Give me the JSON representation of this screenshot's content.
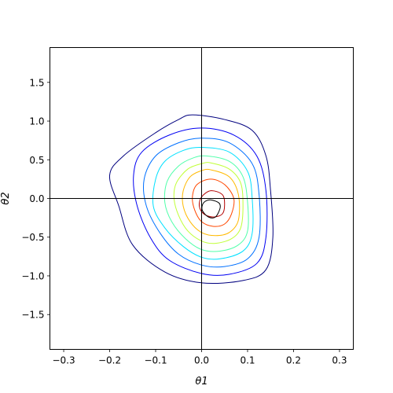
{
  "chart_data": {
    "type": "contour",
    "title": "",
    "xlabel": "θ1",
    "ylabel": "θ2",
    "xlim": [
      -0.33,
      0.33
    ],
    "ylim": [
      -1.95,
      1.95
    ],
    "x_ticks": [
      -0.3,
      -0.2,
      -0.1,
      0.0,
      0.1,
      0.2,
      0.3
    ],
    "x_tick_labels": [
      "−0.3",
      "−0.2",
      "−0.1",
      "0.0",
      "0.1",
      "0.2",
      "0.3"
    ],
    "y_ticks": [
      -1.5,
      -1.0,
      -0.5,
      0.0,
      0.5,
      1.0,
      1.5
    ],
    "y_tick_labels": [
      "−1.5",
      "−1.0",
      "−0.5",
      "0.0",
      "0.5",
      "1.0",
      "1.5"
    ],
    "reference_lines": {
      "x": 0.0,
      "y": 0.0,
      "color": "#000000"
    },
    "grid": false,
    "legend": "none",
    "colormap": "jet",
    "levels": [
      {
        "level": 1,
        "color": "#00007f",
        "points": [
          [
            -0.02,
            1.08
          ],
          [
            0.05,
            1.02
          ],
          [
            0.11,
            0.88
          ],
          [
            0.14,
            0.55
          ],
          [
            0.15,
            0.1
          ],
          [
            0.155,
            -0.5
          ],
          [
            0.14,
            -0.92
          ],
          [
            0.09,
            -1.06
          ],
          [
            0.0,
            -1.09
          ],
          [
            -0.08,
            -0.95
          ],
          [
            -0.15,
            -0.6
          ],
          [
            -0.18,
            -0.1
          ],
          [
            -0.2,
            0.3
          ],
          [
            -0.17,
            0.55
          ],
          [
            -0.1,
            0.85
          ],
          [
            -0.05,
            1.02
          ]
        ]
      },
      {
        "level": 2,
        "color": "#0000f2",
        "points": [
          [
            0.0,
            0.91
          ],
          [
            0.07,
            0.82
          ],
          [
            0.12,
            0.55
          ],
          [
            0.14,
            0.1
          ],
          [
            0.14,
            -0.5
          ],
          [
            0.12,
            -0.84
          ],
          [
            0.06,
            -0.98
          ],
          [
            0.0,
            -0.97
          ],
          [
            -0.07,
            -0.8
          ],
          [
            -0.11,
            -0.52
          ],
          [
            -0.14,
            -0.1
          ],
          [
            -0.148,
            0.3
          ],
          [
            -0.13,
            0.6
          ],
          [
            -0.07,
            0.82
          ]
        ]
      },
      {
        "level": 3,
        "color": "#0070ff",
        "points": [
          [
            0.0,
            0.78
          ],
          [
            0.06,
            0.72
          ],
          [
            0.11,
            0.45
          ],
          [
            0.125,
            0.05
          ],
          [
            0.125,
            -0.5
          ],
          [
            0.1,
            -0.78
          ],
          [
            0.05,
            -0.88
          ],
          [
            0.0,
            -0.86
          ],
          [
            -0.05,
            -0.72
          ],
          [
            -0.09,
            -0.45
          ],
          [
            -0.12,
            -0.1
          ],
          [
            -0.125,
            0.25
          ],
          [
            -0.1,
            0.55
          ],
          [
            -0.05,
            0.72
          ]
        ]
      },
      {
        "level": 4,
        "color": "#00e0ff",
        "points": [
          [
            0.0,
            0.66
          ],
          [
            0.06,
            0.6
          ],
          [
            0.1,
            0.35
          ],
          [
            0.11,
            0.0
          ],
          [
            0.11,
            -0.45
          ],
          [
            0.09,
            -0.68
          ],
          [
            0.04,
            -0.78
          ],
          [
            0.0,
            -0.76
          ],
          [
            -0.04,
            -0.62
          ],
          [
            -0.08,
            -0.38
          ],
          [
            -0.105,
            -0.1
          ],
          [
            -0.1,
            0.25
          ],
          [
            -0.08,
            0.48
          ],
          [
            -0.04,
            0.62
          ]
        ]
      },
      {
        "level": 5,
        "color": "#50ffaa",
        "points": [
          [
            0.01,
            0.55
          ],
          [
            0.06,
            0.48
          ],
          [
            0.09,
            0.28
          ],
          [
            0.1,
            -0.05
          ],
          [
            0.1,
            -0.42
          ],
          [
            0.08,
            -0.6
          ],
          [
            0.04,
            -0.68
          ],
          [
            0.0,
            -0.66
          ],
          [
            -0.035,
            -0.52
          ],
          [
            -0.065,
            -0.3
          ],
          [
            -0.08,
            -0.05
          ],
          [
            -0.075,
            0.22
          ],
          [
            -0.05,
            0.42
          ],
          [
            -0.02,
            0.52
          ]
        ]
      },
      {
        "level": 6,
        "color": "#c0ff36",
        "points": [
          [
            0.02,
            0.46
          ],
          [
            0.06,
            0.38
          ],
          [
            0.085,
            0.2
          ],
          [
            0.09,
            -0.1
          ],
          [
            0.085,
            -0.38
          ],
          [
            0.065,
            -0.52
          ],
          [
            0.03,
            -0.58
          ],
          [
            0.0,
            -0.55
          ],
          [
            -0.03,
            -0.42
          ],
          [
            -0.05,
            -0.22
          ],
          [
            -0.06,
            0.0
          ],
          [
            -0.055,
            0.2
          ],
          [
            -0.03,
            0.38
          ],
          [
            0.0,
            0.45
          ]
        ]
      },
      {
        "level": 7,
        "color": "#ffb900",
        "points": [
          [
            0.02,
            0.37
          ],
          [
            0.06,
            0.28
          ],
          [
            0.08,
            0.05
          ],
          [
            0.08,
            -0.28
          ],
          [
            0.06,
            -0.44
          ],
          [
            0.03,
            -0.48
          ],
          [
            0.0,
            -0.44
          ],
          [
            -0.025,
            -0.3
          ],
          [
            -0.04,
            -0.1
          ],
          [
            -0.04,
            0.1
          ],
          [
            -0.025,
            0.28
          ],
          [
            0.0,
            0.36
          ]
        ]
      },
      {
        "level": 8,
        "color": "#ff4700",
        "points": [
          [
            0.02,
            0.25
          ],
          [
            0.05,
            0.18
          ],
          [
            0.07,
            0.0
          ],
          [
            0.065,
            -0.2
          ],
          [
            0.05,
            -0.33
          ],
          [
            0.025,
            -0.36
          ],
          [
            0.0,
            -0.3
          ],
          [
            -0.015,
            -0.15
          ],
          [
            -0.02,
            0.02
          ],
          [
            -0.01,
            0.18
          ]
        ]
      },
      {
        "level": 9,
        "color": "#b20000",
        "points": [
          [
            0.02,
            0.1
          ],
          [
            0.045,
            0.05
          ],
          [
            0.05,
            -0.08
          ],
          [
            0.045,
            -0.2
          ],
          [
            0.025,
            -0.24
          ],
          [
            0.005,
            -0.2
          ],
          [
            -0.005,
            -0.1
          ],
          [
            0.0,
            0.02
          ]
        ]
      },
      {
        "level": 10,
        "color": "#000000",
        "points": [
          [
            0.022,
            -0.02
          ],
          [
            0.038,
            -0.06
          ],
          [
            0.04,
            -0.13
          ],
          [
            0.03,
            -0.24
          ],
          [
            0.015,
            -0.24
          ],
          [
            0.002,
            -0.16
          ],
          [
            0.002,
            -0.08
          ],
          [
            0.01,
            -0.03
          ]
        ]
      }
    ]
  }
}
